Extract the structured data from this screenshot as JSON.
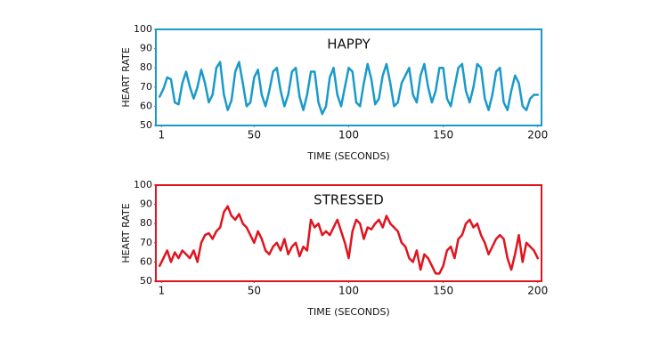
{
  "chart_data": [
    {
      "type": "line",
      "title": "HAPPY",
      "xlabel": "TIME (SECONDS)",
      "ylabel": "HEART RATE",
      "x": [
        0,
        2,
        4,
        6,
        8,
        10,
        12,
        14,
        16,
        18,
        20,
        22,
        24,
        26,
        28,
        30,
        32,
        34,
        36,
        38,
        40,
        42,
        44,
        46,
        48,
        50,
        52,
        54,
        56,
        58,
        60,
        62,
        64,
        66,
        68,
        70,
        72,
        74,
        76,
        78,
        80,
        82,
        84,
        86,
        88,
        90,
        92,
        94,
        96,
        98,
        100,
        102,
        104,
        106,
        108,
        110,
        112,
        114,
        116,
        118,
        120,
        122,
        124,
        126,
        128,
        130,
        132,
        134,
        136,
        138,
        140,
        142,
        144,
        146,
        148,
        150,
        152,
        154,
        156,
        158,
        160,
        162,
        164,
        166,
        168,
        170,
        172,
        174,
        176,
        178,
        180,
        182,
        184,
        186,
        188,
        190,
        192,
        194,
        196,
        198,
        200
      ],
      "series": [
        {
          "color": "#1a9ac9",
          "values": [
            65,
            69,
            75,
            74,
            62,
            61,
            72,
            78,
            70,
            64,
            70,
            79,
            72,
            62,
            66,
            80,
            83,
            66,
            58,
            63,
            78,
            83,
            72,
            60,
            62,
            75,
            79,
            66,
            60,
            68,
            78,
            80,
            68,
            60,
            66,
            78,
            80,
            65,
            58,
            66,
            78,
            78,
            62,
            56,
            60,
            75,
            80,
            66,
            60,
            70,
            80,
            78,
            62,
            60,
            72,
            82,
            74,
            61,
            64,
            76,
            82,
            72,
            60,
            62,
            72,
            76,
            80,
            66,
            62,
            76,
            82,
            70,
            62,
            68,
            80,
            80,
            64,
            60,
            70,
            80,
            82,
            68,
            62,
            70,
            82,
            80,
            64,
            58,
            66,
            78,
            80,
            62,
            58,
            68,
            76,
            72,
            60,
            58,
            64,
            66,
            66
          ]
        }
      ],
      "xlim": [
        -2,
        202
      ],
      "xticks": [
        1,
        50,
        100,
        150,
        200
      ],
      "ylim": [
        50,
        100
      ],
      "yticks": [
        50,
        60,
        70,
        80,
        90,
        100
      ]
    },
    {
      "type": "line",
      "title": "STRESSED",
      "xlabel": "TIME (SECONDS)",
      "ylabel": "HEART RATE",
      "x": [
        0,
        2,
        4,
        6,
        8,
        10,
        12,
        14,
        16,
        18,
        20,
        22,
        24,
        26,
        28,
        30,
        32,
        34,
        36,
        38,
        40,
        42,
        44,
        46,
        48,
        50,
        52,
        54,
        56,
        58,
        60,
        62,
        64,
        66,
        68,
        70,
        72,
        74,
        76,
        78,
        80,
        82,
        84,
        86,
        88,
        90,
        92,
        94,
        96,
        98,
        100,
        102,
        104,
        106,
        108,
        110,
        112,
        114,
        116,
        118,
        120,
        122,
        124,
        126,
        128,
        130,
        132,
        134,
        136,
        138,
        140,
        142,
        144,
        146,
        148,
        150,
        152,
        154,
        156,
        158,
        160,
        162,
        164,
        166,
        168,
        170,
        172,
        174,
        176,
        178,
        180,
        182,
        184,
        186,
        188,
        190,
        192,
        194,
        196,
        198,
        200
      ],
      "series": [
        {
          "color": "#e0141e",
          "values": [
            58,
            62,
            66,
            60,
            65,
            62,
            66,
            64,
            62,
            66,
            60,
            70,
            74,
            75,
            72,
            76,
            78,
            86,
            89,
            84,
            82,
            85,
            80,
            78,
            74,
            70,
            76,
            72,
            66,
            64,
            68,
            70,
            66,
            72,
            64,
            68,
            70,
            63,
            68,
            66,
            82,
            78,
            80,
            74,
            76,
            74,
            78,
            82,
            76,
            70,
            62,
            76,
            82,
            80,
            72,
            78,
            77,
            80,
            82,
            78,
            84,
            80,
            78,
            76,
            70,
            68,
            62,
            60,
            66,
            56,
            64,
            62,
            58,
            54,
            54,
            58,
            66,
            68,
            62,
            72,
            74,
            80,
            82,
            78,
            80,
            74,
            70,
            64,
            68,
            72,
            74,
            72,
            62,
            56,
            64,
            74,
            60,
            70,
            68,
            66,
            62
          ]
        }
      ],
      "xlim": [
        -2,
        202
      ],
      "xticks": [
        1,
        50,
        100,
        150,
        200
      ],
      "ylim": [
        50,
        100
      ],
      "yticks": [
        50,
        60,
        70,
        80,
        90,
        100
      ]
    }
  ]
}
